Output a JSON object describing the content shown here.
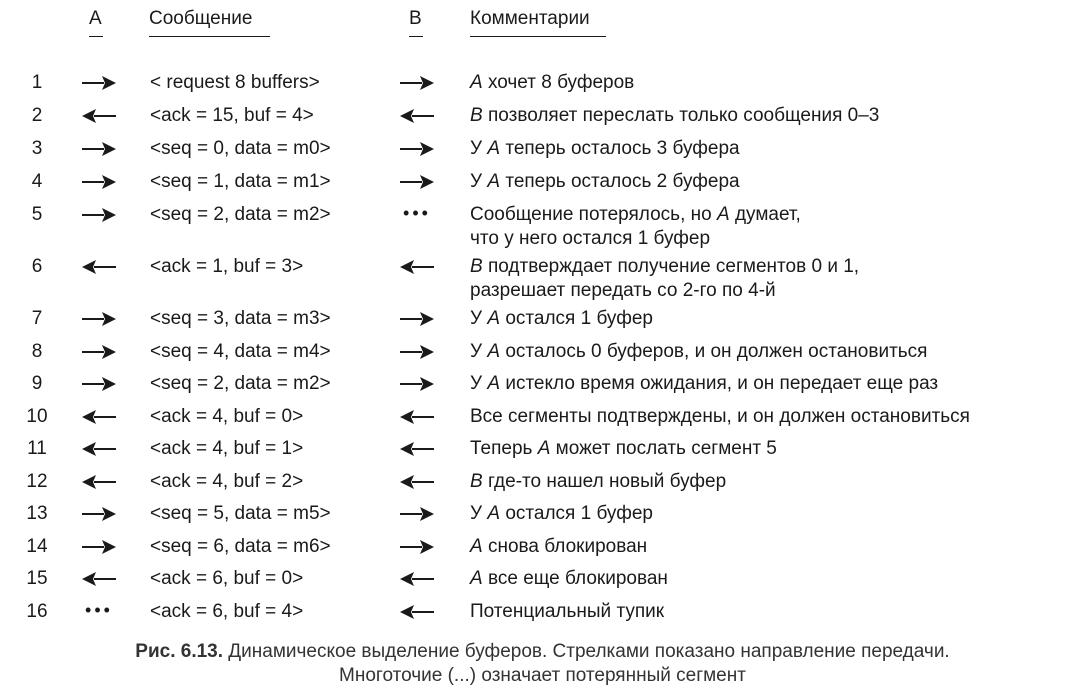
{
  "header": {
    "col_a": "A",
    "col_message": "Сообщение",
    "col_b": "B",
    "col_comments": "Комментарии"
  },
  "rows": [
    {
      "n": "1",
      "a": "right",
      "msg": "< request 8 buffers>",
      "b": "right",
      "actor": "A",
      "comment": " хочет 8 буферов"
    },
    {
      "n": "2",
      "a": "left",
      "msg": "<ack = 15, buf = 4>",
      "b": "left",
      "actor": "B",
      "comment": " позволяет переслать только сообщения 0–3"
    },
    {
      "n": "3",
      "a": "right",
      "msg": "<seq = 0, data = m0>",
      "b": "right",
      "prefix": "У ",
      "actor": "A",
      "comment": " теперь осталось 3 буфера"
    },
    {
      "n": "4",
      "a": "right",
      "msg": "<seq = 1, data = m1>",
      "b": "right",
      "prefix": "У ",
      "actor": "A",
      "comment": " теперь осталось 2 буфера"
    },
    {
      "n": "5",
      "a": "right",
      "msg": "<seq = 2, data = m2>",
      "b": "dots",
      "prefix": "Сообщение потерялось, но ",
      "actor": "A",
      "comment": " думает,",
      "line2": "что у него остался 1 буфер"
    },
    {
      "n": "6",
      "a": "left",
      "msg": "<ack = 1, buf = 3>",
      "b": "left",
      "actor": "B",
      "comment": " подтверждает получение сегментов 0 и 1,",
      "line2": "разрешает передать со 2-го по 4-й"
    },
    {
      "n": "7",
      "a": "right",
      "msg": "<seq = 3, data = m3>",
      "b": "right",
      "prefix": "У ",
      "actor": "A",
      "comment": " остался 1 буфер"
    },
    {
      "n": "8",
      "a": "right",
      "msg": "<seq = 4, data = m4>",
      "b": "right",
      "prefix": "У ",
      "actor": "A",
      "comment": " осталось 0 буферов, и он должен остановиться"
    },
    {
      "n": "9",
      "a": "right",
      "msg": "<seq = 2, data = m2>",
      "b": "right",
      "prefix": "У ",
      "actor": "A",
      "comment": " истекло время ожидания, и он передает еще раз"
    },
    {
      "n": "10",
      "a": "left",
      "msg": "<ack = 4, buf = 0>",
      "b": "left",
      "comment": "Все сегменты подтверждены, и он должен остановиться"
    },
    {
      "n": "11",
      "a": "left",
      "msg": "<ack = 4, buf = 1>",
      "b": "left",
      "prefix": "Теперь ",
      "actor": "A",
      "comment": " может послать сегмент 5"
    },
    {
      "n": "12",
      "a": "left",
      "msg": "<ack = 4, buf = 2>",
      "b": "left",
      "actor": "B",
      "comment": " где-то нашел новый буфер"
    },
    {
      "n": "13",
      "a": "right",
      "msg": "<seq = 5, data = m5>",
      "b": "right",
      "prefix": "У ",
      "actor": "A",
      "comment": " остался 1 буфер"
    },
    {
      "n": "14",
      "a": "right",
      "msg": "<seq = 6, data = m6>",
      "b": "right",
      "actor": "A",
      "comment": " снова блокирован"
    },
    {
      "n": "15",
      "a": "left",
      "msg": "<ack = 6, buf = 0>",
      "b": "left",
      "actor": "A",
      "comment": " все еще блокирован"
    },
    {
      "n": "16",
      "a": "dots",
      "msg": "<ack = 6, buf = 4>",
      "b": "left",
      "comment": "Потенциальный тупик"
    }
  ],
  "caption": {
    "label": "Рис. 6.13.",
    "line1": " Динамическое выделение буферов. Стрелками показано направление передачи.",
    "line2": "Многоточие (...) означает потерянный сегмент"
  }
}
